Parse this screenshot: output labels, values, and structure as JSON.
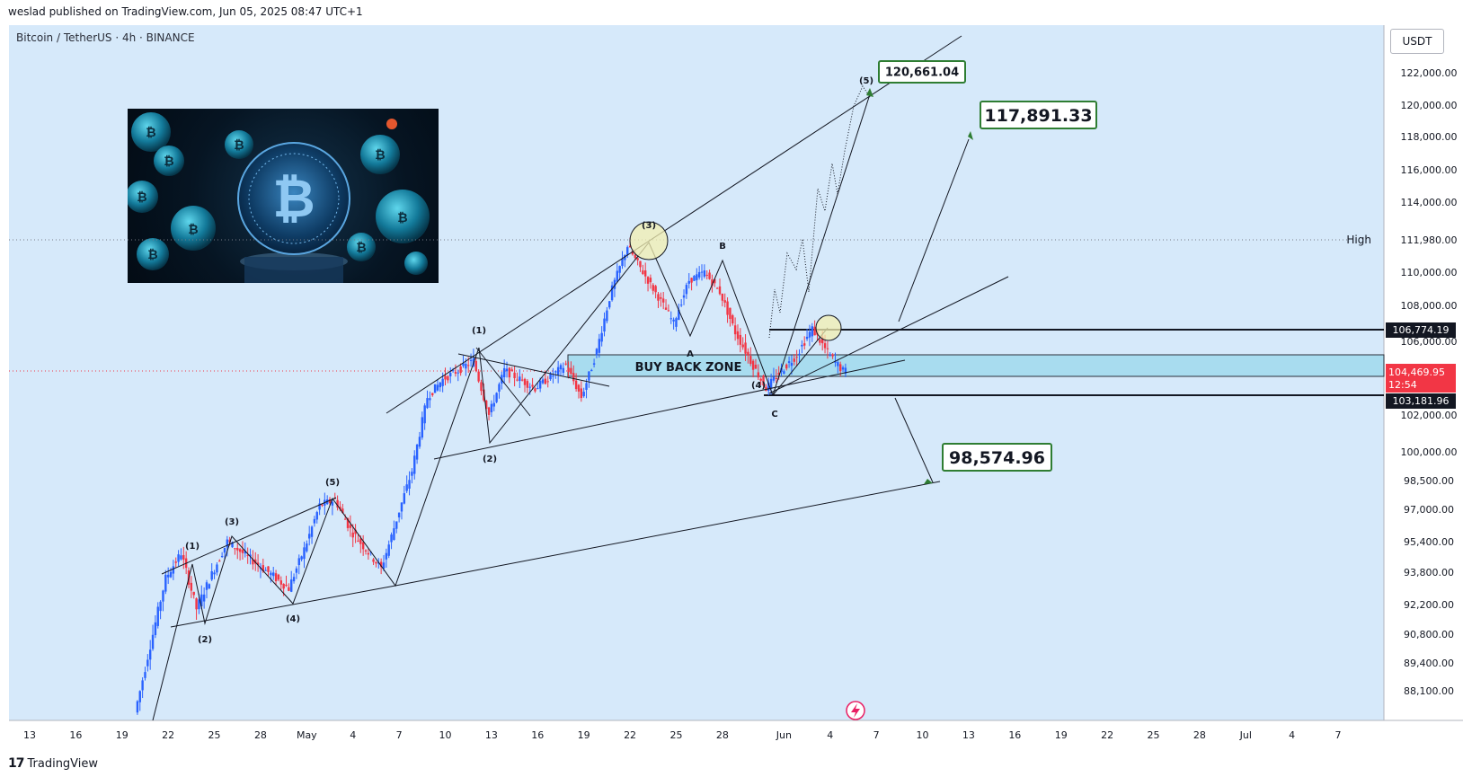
{
  "header": {
    "published_line": "weslad published on TradingView.com, Jun 05, 2025 08:47 UTC+1",
    "symbol_line": "Bitcoin / TetherUS · 4h · BINANCE",
    "currency": "USDT"
  },
  "footer": {
    "brand": "TradingView"
  },
  "colors": {
    "background": "#d6e9fa",
    "bull_candle": "#2962ff",
    "bear_candle": "#f23645",
    "zone_fill": "#a8dcef",
    "target_box_border": "#2e7d32",
    "circle_fill": "#f3efb0"
  },
  "chart_data": {
    "type": "candlestick",
    "timeframe": "4h",
    "x_tick_labels": [
      "13",
      "16",
      "19",
      "22",
      "25",
      "28",
      "May",
      "4",
      "7",
      "10",
      "13",
      "16",
      "19",
      "22",
      "25",
      "28",
      "Jun",
      "4",
      "7",
      "10",
      "13",
      "16",
      "19",
      "22",
      "25",
      "28",
      "Jul",
      "4",
      "7"
    ],
    "y_tick_labels": [
      "122,000.00",
      "120,000.00",
      "118,000.00",
      "116,000.00",
      "114,000.00",
      "111,980.00",
      "110,000.00",
      "108,000.00",
      "106,000.00",
      "102,000.00",
      "100,000.00",
      "98,500.00",
      "97,000.00",
      "95,400.00",
      "93,800.00",
      "92,200.00",
      "90,800.00",
      "89,400.00",
      "88,100.00"
    ],
    "price_labels": {
      "high_label": "High",
      "high_value": "111,980.00",
      "resistance": "106,774.19",
      "current_price": "104,469.95",
      "countdown": "12:54",
      "support": "103,181.96"
    },
    "annotations": {
      "buy_back_zone": "BUY BACK ZONE",
      "targets": [
        "120,661.04",
        "117,891.33",
        "98,574.96"
      ],
      "waves_first_impulse": [
        "(1)",
        "(2)",
        "(3)",
        "(4)",
        "(5)"
      ],
      "waves_second_impulse": [
        "(1)",
        "(2)",
        "(3)",
        "(4)",
        "(5)"
      ],
      "correction": [
        "A",
        "B",
        "C"
      ]
    },
    "price_path": [
      [
        "Apr 20",
        87000
      ],
      [
        "Apr 22",
        93500
      ],
      [
        "Apr 23",
        94800
      ],
      [
        "Apr 24",
        92000
      ],
      [
        "Apr 26",
        95400
      ],
      [
        "Apr 28",
        94200
      ],
      [
        "Apr 30",
        93000
      ],
      [
        "May 1",
        95000
      ],
      [
        "May 2",
        97200
      ],
      [
        "May 3",
        97500
      ],
      [
        "May 4",
        96000
      ],
      [
        "May 6",
        94000
      ],
      [
        "May 7",
        96500
      ],
      [
        "May 8",
        99000
      ],
      [
        "May 9",
        103000
      ],
      [
        "May 10",
        104000
      ],
      [
        "May 12",
        105000
      ],
      [
        "May 13",
        102000
      ],
      [
        "May 14",
        104500
      ],
      [
        "May 16",
        103500
      ],
      [
        "May 18",
        104800
      ],
      [
        "May 19",
        103000
      ],
      [
        "May 20",
        105500
      ],
      [
        "May 21",
        109000
      ],
      [
        "May 22",
        111600
      ],
      [
        "May 23",
        110000
      ],
      [
        "May 24",
        108500
      ],
      [
        "May 25",
        107000
      ],
      [
        "May 26",
        109500
      ],
      [
        "May 27",
        110000
      ],
      [
        "May 28",
        108800
      ],
      [
        "May 29",
        106500
      ],
      [
        "May 30",
        105000
      ],
      [
        "May 31",
        103500
      ],
      [
        "Jun 1",
        104500
      ],
      [
        "Jun 2",
        105300
      ],
      [
        "Jun 3",
        106700
      ],
      [
        "Jun 4",
        105400
      ],
      [
        "Jun 5",
        104470
      ]
    ]
  }
}
